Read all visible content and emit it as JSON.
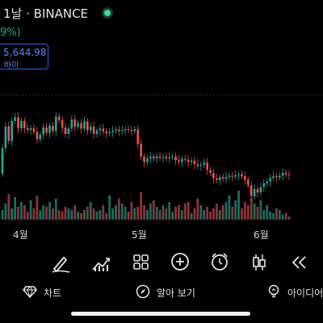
{
  "header": {
    "title": "1날 · BINANCE",
    "change": "9%)",
    "price": "5,644.98",
    "price_label": "바이"
  },
  "x_axis_labels": [
    "4월",
    "5월",
    "6월"
  ],
  "toolbar": {
    "icons": [
      "draw-icon",
      "indicators-icon",
      "layout-icon",
      "add-icon",
      "alarm-icon",
      "candles-icon",
      "replay-icon"
    ]
  },
  "bottom_nav": {
    "chart": "차트",
    "explore": "알아 보기",
    "ideas": "아이디어"
  },
  "colors": {
    "up": "#26a69a",
    "down": "#ef5350",
    "accent": "#2962ff",
    "live": "#3ddc97",
    "bg": "#000000"
  },
  "chart_data": {
    "type": "candlestick",
    "candles": [
      [
        0,
        70
      ],
      [
        0,
        60
      ],
      [
        0,
        -40
      ],
      [
        -1,
        55
      ],
      [
        1,
        10
      ],
      [
        -1,
        -30
      ],
      [
        1,
        20
      ],
      [
        0,
        -20
      ],
      [
        1,
        -5
      ],
      [
        -1,
        5
      ],
      [
        0,
        -10
      ],
      [
        -1,
        -20
      ],
      [
        1,
        12
      ],
      [
        0,
        20
      ],
      [
        0,
        -15
      ],
      [
        -1,
        20
      ],
      [
        1,
        -15
      ],
      [
        0,
        40
      ],
      [
        1,
        -10
      ],
      [
        -1,
        -20
      ],
      [
        1,
        -18
      ],
      [
        0,
        15
      ],
      [
        -1,
        25
      ],
      [
        1,
        -20
      ],
      [
        0,
        10
      ],
      [
        0,
        -15
      ],
      [
        -1,
        20
      ],
      [
        1,
        -25
      ],
      [
        0,
        10
      ],
      [
        1,
        -20
      ],
      [
        0,
        10
      ],
      [
        -1,
        5
      ],
      [
        1,
        -8
      ],
      [
        0,
        -5
      ],
      [
        1,
        3
      ],
      [
        0,
        4
      ],
      [
        -1,
        3
      ],
      [
        1,
        -4
      ],
      [
        0,
        2
      ],
      [
        0,
        3
      ],
      [
        -1,
        -2
      ],
      [
        1,
        -3
      ],
      [
        0,
        5
      ],
      [
        1,
        -40
      ],
      [
        0,
        -35
      ],
      [
        1,
        -15
      ],
      [
        -1,
        10
      ],
      [
        0,
        5
      ],
      [
        1,
        -5
      ],
      [
        -1,
        5
      ],
      [
        0,
        -3
      ],
      [
        1,
        2
      ],
      [
        0,
        -4
      ],
      [
        -1,
        3
      ],
      [
        1,
        2
      ],
      [
        0,
        -10
      ],
      [
        1,
        -5
      ],
      [
        -1,
        8
      ],
      [
        0,
        -2
      ],
      [
        1,
        -6
      ],
      [
        0,
        4
      ],
      [
        -1,
        -10
      ],
      [
        1,
        -5
      ],
      [
        0,
        3
      ],
      [
        -1,
        6
      ],
      [
        1,
        -20
      ],
      [
        0,
        -8
      ],
      [
        1,
        -15
      ],
      [
        0,
        -5
      ],
      [
        -1,
        8
      ],
      [
        1,
        -4
      ],
      [
        0,
        5
      ],
      [
        -1,
        3
      ],
      [
        1,
        -2
      ],
      [
        0,
        4
      ],
      [
        -1,
        2
      ],
      [
        1,
        -5
      ],
      [
        0,
        -10
      ],
      [
        1,
        -15
      ],
      [
        0,
        -30
      ],
      [
        -1,
        20
      ],
      [
        1,
        -10
      ],
      [
        0,
        15
      ],
      [
        -1,
        10
      ],
      [
        1,
        5
      ],
      [
        0,
        10
      ],
      [
        -1,
        5
      ],
      [
        1,
        -3
      ],
      [
        0,
        4
      ],
      [
        -1,
        8
      ],
      [
        1,
        -4
      ],
      [
        0,
        -2
      ]
    ],
    "volumes": [
      12,
      20,
      32,
      14,
      28,
      16,
      22,
      18,
      10,
      24,
      14,
      30,
      12,
      18,
      16,
      22,
      14,
      26,
      12,
      10,
      16,
      14,
      12,
      18,
      10,
      8,
      12,
      16,
      22,
      14,
      10,
      12,
      18,
      8,
      30,
      14,
      18,
      26,
      20,
      16,
      10,
      22,
      14,
      16,
      34,
      18,
      12,
      20,
      24,
      16,
      12,
      18,
      14,
      22,
      10,
      16,
      18,
      12,
      20,
      22,
      8,
      14,
      26,
      18,
      12,
      16,
      10,
      14,
      20,
      12,
      18,
      22,
      30,
      16,
      24,
      36,
      14,
      22,
      18,
      26,
      20,
      16,
      24,
      12,
      18,
      10,
      8,
      14,
      12,
      6,
      8,
      4
    ]
  }
}
